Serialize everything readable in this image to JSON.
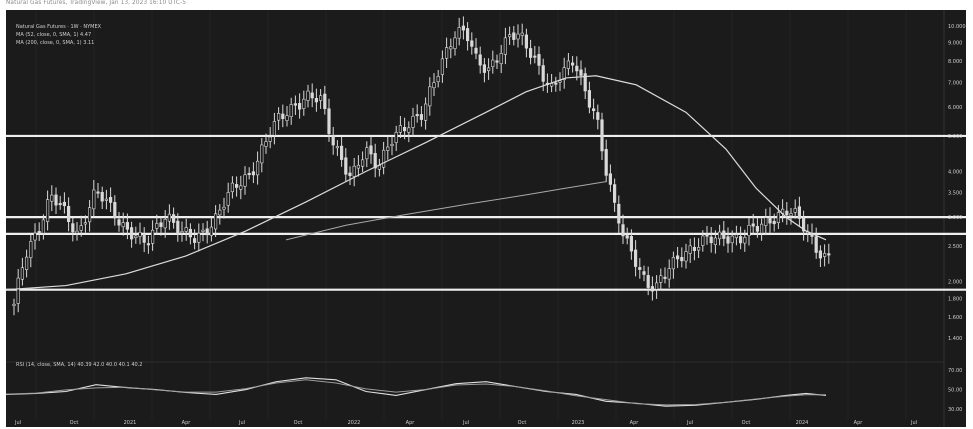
{
  "header": {
    "source_line": "Natural Gas Futures, TradingView, Jan 13, 2023 16:10 UTC-5"
  },
  "legend": {
    "line1": "Natural Gas Futures · 1W · NYMEX",
    "line2": "MA (52, close, 0, SMA, 1) 4.47",
    "line3": "MA (200, close, 0, SMA, 1) 3.11"
  },
  "oscillator": {
    "label": "RSI (14, close, SMA, 14) 40.39  42.0  40.0  40.1  40.2"
  },
  "colors": {
    "background": "#1b1b1b",
    "candle": "#d9d9d9",
    "ma_line": "#dcdcdc",
    "support_lines": "#efefef",
    "grid": "#2a2a2a"
  },
  "chart_data": {
    "type": "candlestick",
    "x_labels": [
      "Jul",
      "Oct",
      "2021",
      "Apr",
      "Jul",
      "Oct",
      "2022",
      "Apr",
      "Jul",
      "Oct",
      "2023",
      "Apr",
      "Jul",
      "Oct",
      "2024",
      "Apr",
      "Jul"
    ],
    "y_ticks": [
      10.0,
      9.0,
      8.0,
      7.0,
      6.0,
      5.0,
      4.0,
      3.5,
      3.0,
      2.5,
      2.0,
      1.8,
      1.6,
      1.4
    ],
    "y_scale": "log",
    "ylim": [
      1.3,
      10.5
    ],
    "horizontal_levels": [
      5.0,
      3.0,
      2.7,
      1.9
    ],
    "price_path": [
      [
        0,
        1.9
      ],
      [
        8,
        1.7
      ],
      [
        20,
        2.4
      ],
      [
        35,
        2.9
      ],
      [
        45,
        3.4
      ],
      [
        58,
        3.1
      ],
      [
        72,
        2.7
      ],
      [
        90,
        3.5
      ],
      [
        104,
        3.2
      ],
      [
        120,
        2.8
      ],
      [
        140,
        2.5
      ],
      [
        160,
        3.1
      ],
      [
        175,
        2.7
      ],
      [
        190,
        2.6
      ],
      [
        210,
        3.0
      ],
      [
        225,
        3.5
      ],
      [
        245,
        4.0
      ],
      [
        260,
        4.8
      ],
      [
        272,
        5.5
      ],
      [
        285,
        6.0
      ],
      [
        300,
        6.4
      ],
      [
        315,
        6.2
      ],
      [
        325,
        5.0
      ],
      [
        345,
        3.8
      ],
      [
        360,
        4.5
      ],
      [
        372,
        4.2
      ],
      [
        385,
        4.9
      ],
      [
        400,
        5.2
      ],
      [
        415,
        5.8
      ],
      [
        425,
        6.8
      ],
      [
        438,
        8.0
      ],
      [
        450,
        9.5
      ],
      [
        460,
        9.9
      ],
      [
        470,
        8.2
      ],
      [
        482,
        7.3
      ],
      [
        495,
        8.5
      ],
      [
        505,
        9.8
      ],
      [
        515,
        9.4
      ],
      [
        525,
        8.2
      ],
      [
        535,
        7.4
      ],
      [
        545,
        6.8
      ],
      [
        555,
        7.5
      ],
      [
        568,
        7.9
      ],
      [
        578,
        6.6
      ],
      [
        590,
        5.8
      ],
      [
        598,
        4.3
      ],
      [
        608,
        3.2
      ],
      [
        618,
        2.6
      ],
      [
        630,
        2.3
      ],
      [
        640,
        2.0
      ],
      [
        650,
        1.9
      ],
      [
        660,
        2.1
      ],
      [
        675,
        2.4
      ],
      [
        690,
        2.5
      ],
      [
        705,
        2.6
      ],
      [
        720,
        2.7
      ],
      [
        735,
        2.6
      ],
      [
        750,
        2.8
      ],
      [
        765,
        3.0
      ],
      [
        780,
        3.1
      ],
      [
        790,
        3.0
      ],
      [
        800,
        2.8
      ],
      [
        810,
        2.5
      ],
      [
        820,
        2.3
      ]
    ],
    "ma_short": [
      [
        0,
        1.9
      ],
      [
        60,
        1.95
      ],
      [
        120,
        2.1
      ],
      [
        180,
        2.35
      ],
      [
        240,
        2.75
      ],
      [
        300,
        3.3
      ],
      [
        360,
        4.0
      ],
      [
        420,
        4.8
      ],
      [
        480,
        5.8
      ],
      [
        520,
        6.6
      ],
      [
        560,
        7.2
      ],
      [
        590,
        7.3
      ],
      [
        630,
        6.9
      ],
      [
        680,
        5.8
      ],
      [
        720,
        4.6
      ],
      [
        750,
        3.6
      ],
      [
        780,
        3.0
      ],
      [
        800,
        2.75
      ],
      [
        820,
        2.6
      ]
    ],
    "ma_long": [
      [
        280,
        2.6
      ],
      [
        340,
        2.85
      ],
      [
        400,
        3.05
      ],
      [
        460,
        3.25
      ],
      [
        520,
        3.45
      ],
      [
        560,
        3.6
      ],
      [
        600,
        3.75
      ]
    ],
    "oscillator_path": [
      [
        0,
        45
      ],
      [
        30,
        46
      ],
      [
        60,
        48
      ],
      [
        90,
        55
      ],
      [
        120,
        52
      ],
      [
        150,
        50
      ],
      [
        180,
        47
      ],
      [
        210,
        45
      ],
      [
        240,
        50
      ],
      [
        270,
        58
      ],
      [
        300,
        62
      ],
      [
        330,
        60
      ],
      [
        360,
        48
      ],
      [
        390,
        44
      ],
      [
        420,
        50
      ],
      [
        450,
        56
      ],
      [
        480,
        58
      ],
      [
        510,
        53
      ],
      [
        540,
        48
      ],
      [
        570,
        45
      ],
      [
        600,
        38
      ],
      [
        630,
        36
      ],
      [
        660,
        33
      ],
      [
        690,
        34
      ],
      [
        720,
        37
      ],
      [
        750,
        40
      ],
      [
        780,
        44
      ],
      [
        800,
        46
      ],
      [
        820,
        44
      ]
    ]
  }
}
